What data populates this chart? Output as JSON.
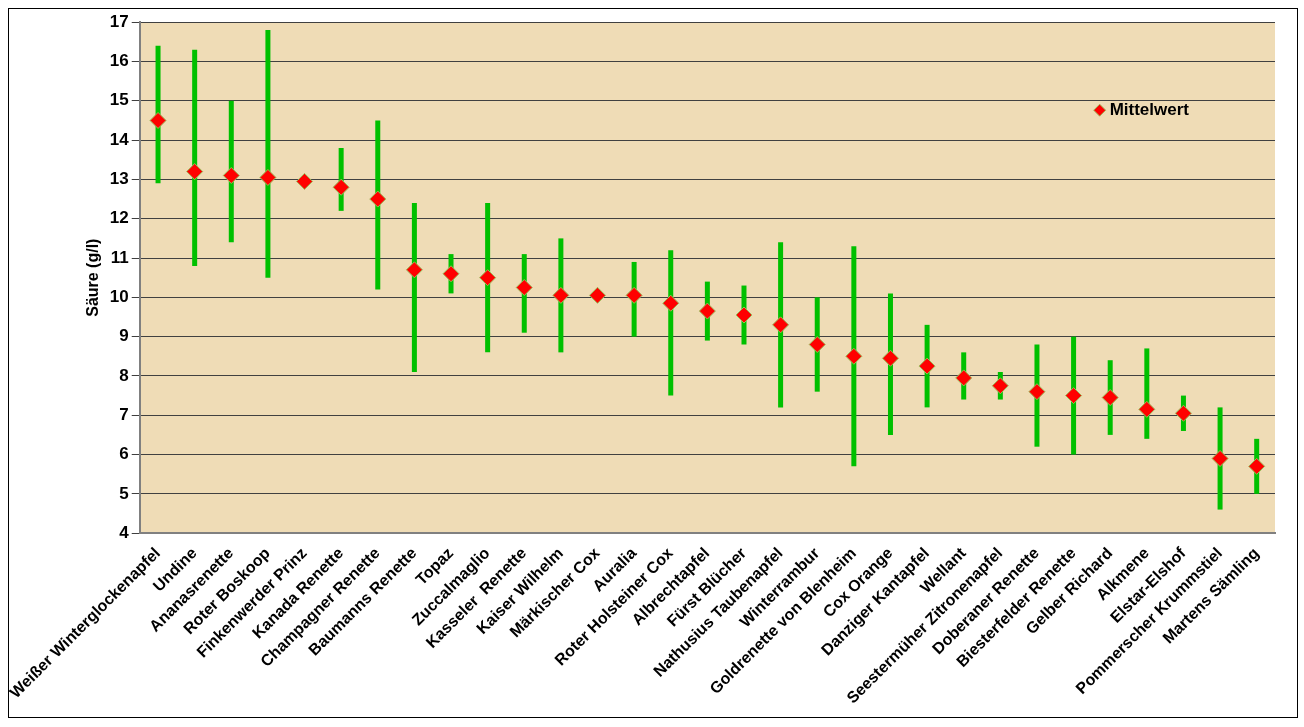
{
  "chart_data": {
    "type": "scatter",
    "ylabel": "Säure (g/l)",
    "categories": [
      "Weißer Winterglockenapfel",
      "Undine",
      "Ananasrenette",
      "Roter Boskoop",
      "Finkenwerder Prinz",
      "Kanada Renette",
      "Champagner Renette",
      "Baumanns Renette",
      "Topaz",
      "Zuccalmaglio",
      "Kasseler  Renette",
      "Kaiser Wilhelm",
      "Märkischer Cox",
      "Auralia",
      "Roter Holsteiner Cox",
      "Albrechtapfel",
      "Fürst Blücher",
      "Nathusius Taubenapfel",
      "Winterrambur",
      "Goldrenette von Blenheim",
      "Cox Orange",
      "Danziger Kantapfel",
      "Wellant",
      "Seestermüher Zitronenapfel",
      "Doberaner Renette",
      "Biesterfelder Renette",
      "Gelber Richard",
      "Alkmene",
      "Elstar-Elshof",
      "Pommerscher Krummstiel",
      "Martens Sämling"
    ],
    "series": [
      {
        "name": "Mittelwert",
        "color": "#ff0000",
        "values": [
          14.5,
          13.2,
          13.1,
          13.05,
          12.95,
          12.8,
          12.5,
          10.7,
          10.6,
          10.5,
          10.25,
          10.05,
          10.05,
          10.05,
          9.85,
          9.65,
          9.55,
          9.3,
          8.8,
          8.5,
          8.45,
          8.25,
          7.95,
          7.75,
          7.6,
          7.5,
          7.45,
          7.15,
          7.05,
          5.9,
          5.7
        ],
        "errors": [
          [
            12.9,
            16.4
          ],
          [
            10.8,
            16.3
          ],
          [
            11.4,
            15.0
          ],
          [
            10.5,
            16.8
          ],
          null,
          [
            12.2,
            13.8
          ],
          [
            10.2,
            14.5
          ],
          [
            8.1,
            12.4
          ],
          [
            10.1,
            11.1
          ],
          [
            8.6,
            12.4
          ],
          [
            9.1,
            11.1
          ],
          [
            8.6,
            11.5
          ],
          null,
          [
            9.0,
            10.9
          ],
          [
            7.5,
            11.2
          ],
          [
            8.9,
            10.4
          ],
          [
            8.8,
            10.3
          ],
          [
            7.2,
            11.4
          ],
          [
            7.6,
            10.0
          ],
          [
            5.7,
            11.3
          ],
          [
            6.5,
            10.1
          ],
          [
            7.2,
            9.3
          ],
          [
            7.4,
            8.6
          ],
          [
            7.4,
            8.1
          ],
          [
            6.2,
            8.8
          ],
          [
            6.0,
            9.0
          ],
          [
            6.5,
            8.4
          ],
          [
            6.4,
            8.7
          ],
          [
            6.6,
            7.5
          ],
          [
            4.6,
            7.2
          ],
          [
            5.0,
            6.4
          ]
        ]
      }
    ],
    "ylim": [
      4,
      17
    ],
    "yticks": [
      4,
      5,
      6,
      7,
      8,
      9,
      10,
      11,
      12,
      13,
      14,
      15,
      16,
      17
    ],
    "grid": "y",
    "legend": "top right",
    "marker": "diamond"
  }
}
